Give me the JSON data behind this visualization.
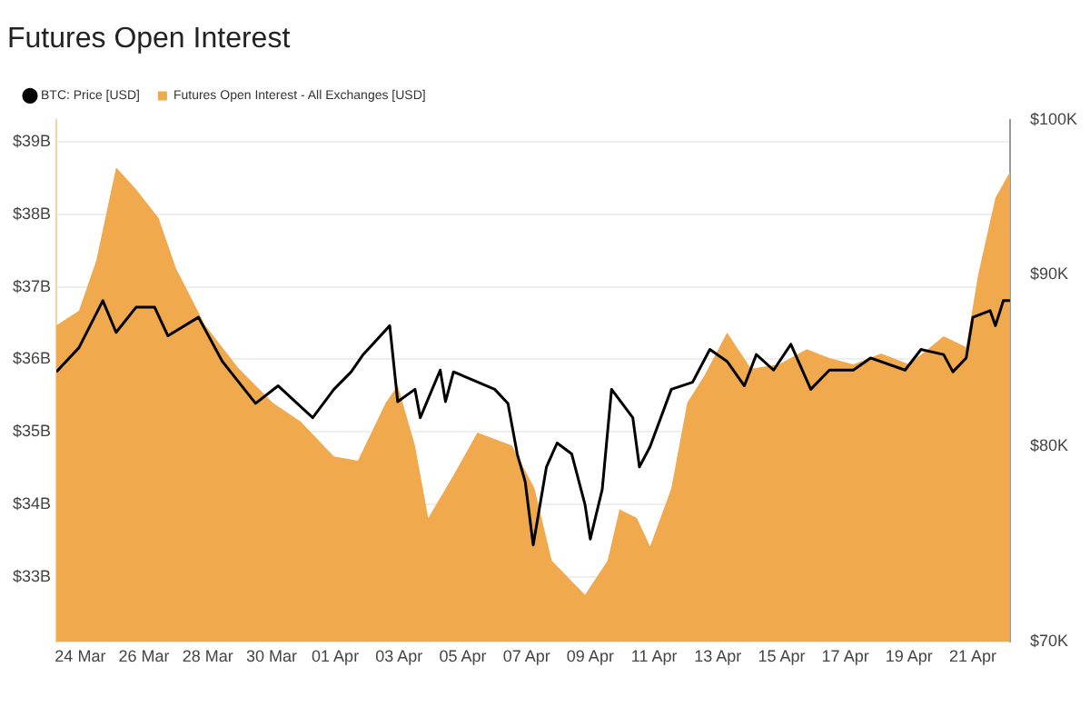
{
  "chart_data": {
    "type": "area",
    "title": "Futures Open Interest",
    "legend": "top left",
    "grid": "y",
    "log": "y2",
    "xlim": [
      "--03-23T06:00",
      "--04-22T04:00"
    ],
    "xticks": [
      {
        "value": "--03-24",
        "label": "24 Mar"
      },
      {
        "value": "--03-26",
        "label": "26 Mar"
      },
      {
        "value": "--03-28",
        "label": "28 Mar"
      },
      {
        "value": "--03-30",
        "label": "30 Mar"
      },
      {
        "value": "--04-01",
        "label": "01 Apr"
      },
      {
        "value": "--04-03",
        "label": "03 Apr"
      },
      {
        "value": "--04-05",
        "label": "05 Apr"
      },
      {
        "value": "--04-07",
        "label": "07 Apr"
      },
      {
        "value": "--04-09",
        "label": "09 Apr"
      },
      {
        "value": "--04-11",
        "label": "11 Apr"
      },
      {
        "value": "--04-13",
        "label": "13 Apr"
      },
      {
        "value": "--04-15",
        "label": "15 Apr"
      },
      {
        "value": "--04-17",
        "label": "17 Apr"
      },
      {
        "value": "--04-19",
        "label": "19 Apr"
      },
      {
        "value": "--04-21",
        "label": "21 Apr"
      }
    ],
    "ylim": [
      32.1,
      39.3
    ],
    "yticks": [
      {
        "value": 33,
        "label": "$33B"
      },
      {
        "value": 34,
        "label": "$34B"
      },
      {
        "value": 35,
        "label": "$35B"
      },
      {
        "value": 36,
        "label": "$36B"
      },
      {
        "value": 37,
        "label": "$37B"
      },
      {
        "value": 38,
        "label": "$38B"
      },
      {
        "value": 39,
        "label": "$39B"
      }
    ],
    "y2lim": [
      70000,
      100000
    ],
    "y2ticks": [
      {
        "value": 70000,
        "label": "$70K"
      },
      {
        "value": 80000,
        "label": "$80K"
      },
      {
        "value": 90000,
        "label": "$90K"
      },
      {
        "value": 100000,
        "label": "$100K"
      }
    ],
    "series": [
      {
        "name": "Futures Open Interest - All Exchanges [USD]",
        "color": "#f0a94c",
        "x": [
          "--03-23T06:00",
          "--03-23T23:00",
          "--03-24T12:00",
          "--03-25T03:00",
          "--03-25T18:00",
          "--03-26T11:00",
          "--03-27T00:00",
          "--03-27T22:00",
          "--03-28T23:00",
          "--03-30T01:00",
          "--03-30T22:00",
          "--03-31T23:00",
          "--04-01T17:00",
          "--04-02T14:00",
          "--04-02T23:00",
          "--04-03T12:00",
          "--04-03T22:00",
          "--04-04T17:00",
          "--04-05T11:00",
          "--04-06T13:00",
          "--04-07T06:00",
          "--04-07T19:00",
          "--04-08T20:00",
          "--04-09T13:00",
          "--04-09T22:00",
          "--04-10T11:00",
          "--04-10T21:00",
          "--04-11T13:00",
          "--04-12T01:00",
          "--04-12T14:00",
          "--04-13T07:00",
          "--04-14T01:00",
          "--04-14T22:00",
          "--04-15T19:00",
          "--04-16T12:00",
          "--04-17T06:00",
          "--04-18T03:00",
          "--04-19T00:00",
          "--04-20T02:00",
          "--04-20T19:00",
          "--04-21T04:00",
          "--04-21T17:00",
          "--04-22T04:00"
        ],
        "values": [
          36.47,
          36.67,
          37.36,
          38.65,
          38.35,
          37.95,
          37.26,
          36.47,
          35.88,
          35.4,
          35.14,
          34.66,
          34.6,
          35.4,
          35.64,
          34.81,
          33.81,
          34.4,
          34.99,
          34.81,
          34.22,
          33.22,
          32.75,
          33.22,
          33.93,
          33.81,
          33.42,
          34.22,
          35.4,
          35.78,
          36.37,
          35.87,
          35.93,
          36.14,
          36.02,
          35.93,
          36.08,
          35.93,
          36.32,
          36.17,
          37.17,
          38.23,
          38.59
        ]
      },
      {
        "name": "BTC: Price [USD]",
        "type": "line",
        "axis": "y2",
        "color": "#000000",
        "x": [
          "--03-23T06:00",
          "--03-23T23:00",
          "--03-24T17:00",
          "--03-25T03:00",
          "--03-25T18:00",
          "--03-26T08:00",
          "--03-26T18:00",
          "--03-27T17:00",
          "--03-28T11:00",
          "--03-29T12:00",
          "--03-30T05:00",
          "--03-31T07:00",
          "--03-31T23:00",
          "--04-01T12:00",
          "--04-01T21:00",
          "--04-02T17:00",
          "--04-02T23:00",
          "--04-03T12:00",
          "--04-03T16:00",
          "--04-04T07:00",
          "--04-04T11:00",
          "--04-04T17:00",
          "--04-06T00:00",
          "--04-06T10:00",
          "--04-06T17:00",
          "--04-06T23:00",
          "--04-07T05:00",
          "--04-07T15:00",
          "--04-07T23:00",
          "--04-08T10:00",
          "--04-08T20:00",
          "--04-09T00:00",
          "--04-09T09:00",
          "--04-09T16:00",
          "--04-10T08:00",
          "--04-10T13:00",
          "--04-10T21:00",
          "--04-11T13:00",
          "--04-12T05:00",
          "--04-12T18:00",
          "--04-13T07:00",
          "--04-13T20:00",
          "--04-14T05:00",
          "--04-14T18:00",
          "--04-15T07:00",
          "--04-15T22:00",
          "--04-16T12:00",
          "--04-17T06:00",
          "--04-17T19:00",
          "--04-18T21:00",
          "--04-19T09:00",
          "--04-20T02:00",
          "--04-20T09:00",
          "--04-20T19:00",
          "--04-21T00:00",
          "--04-21T13:00",
          "--04-21T17:00",
          "--04-21T23:00",
          "--04-22T04:00"
        ],
        "values": [
          84200,
          85600,
          88400,
          86500,
          88000,
          88000,
          86300,
          87400,
          84800,
          82400,
          83400,
          81600,
          83200,
          84200,
          85200,
          86900,
          82500,
          83200,
          81600,
          84300,
          82500,
          84200,
          83200,
          82400,
          79600,
          78100,
          74800,
          78900,
          80200,
          79600,
          76900,
          75100,
          77700,
          83200,
          81600,
          78900,
          80000,
          83200,
          83600,
          85500,
          84800,
          83400,
          85200,
          84300,
          85800,
          83200,
          84300,
          84300,
          85000,
          84300,
          85500,
          85200,
          84200,
          85000,
          87400,
          87800,
          86900,
          88400,
          88400
        ]
      }
    ]
  }
}
